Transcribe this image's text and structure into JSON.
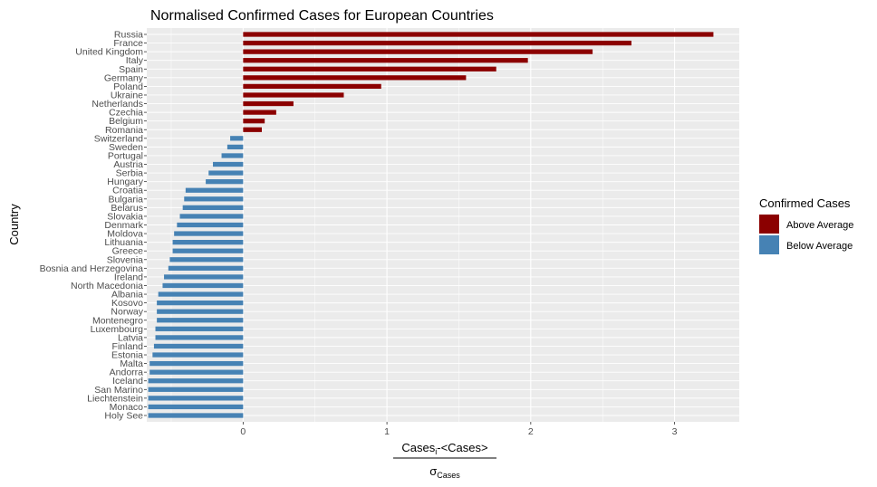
{
  "chart_data": {
    "type": "bar",
    "orientation": "horizontal",
    "title": "Normalised Confirmed Cases for European Countries",
    "ylabel": "Country",
    "xlabel_numerator_main": "Cases",
    "xlabel_numerator_sub": "i",
    "xlabel_numerator_rest": "-<Cases>",
    "xlabel_denominator_main": "σ",
    "xlabel_denominator_sub": "Cases",
    "xlim": [
      -0.67,
      3.45
    ],
    "x_ticks": [
      0,
      1,
      2,
      3
    ],
    "grid": true,
    "legend": {
      "title": "Confirmed Cases",
      "placement": "right",
      "entries": [
        {
          "label": "Above Average",
          "color": "#8b0000"
        },
        {
          "label": "Below Average",
          "color": "#4682b4"
        }
      ]
    },
    "colors": {
      "above": "#8b0000",
      "below": "#4682b4",
      "panel": "#ebebeb",
      "grid": "#ffffff"
    },
    "categories": [
      "Russia",
      "France",
      "United Kingdom",
      "Italy",
      "Spain",
      "Germany",
      "Poland",
      "Ukraine",
      "Netherlands",
      "Czechia",
      "Belgium",
      "Romania",
      "Switzerland",
      "Sweden",
      "Portugal",
      "Austria",
      "Serbia",
      "Hungary",
      "Croatia",
      "Bulgaria",
      "Belarus",
      "Slovakia",
      "Denmark",
      "Moldova",
      "Lithuania",
      "Greece",
      "Slovenia",
      "Bosnia and Herzegovina",
      "Ireland",
      "North Macedonia",
      "Albania",
      "Kosovo",
      "Norway",
      "Montenegro",
      "Luxembourg",
      "Latvia",
      "Finland",
      "Estonia",
      "Malta",
      "Andorra",
      "Iceland",
      "San Marino",
      "Liechtenstein",
      "Monaco",
      "Holy See"
    ],
    "values": [
      3.27,
      2.7,
      2.43,
      1.98,
      1.76,
      1.55,
      0.96,
      0.7,
      0.35,
      0.23,
      0.15,
      0.13,
      -0.09,
      -0.11,
      -0.15,
      -0.21,
      -0.24,
      -0.26,
      -0.4,
      -0.41,
      -0.42,
      -0.44,
      -0.46,
      -0.48,
      -0.49,
      -0.49,
      -0.51,
      -0.52,
      -0.55,
      -0.56,
      -0.59,
      -0.6,
      -0.6,
      -0.6,
      -0.61,
      -0.61,
      -0.62,
      -0.63,
      -0.65,
      -0.65,
      -0.66,
      -0.66,
      -0.66,
      -0.66,
      -0.66
    ]
  }
}
